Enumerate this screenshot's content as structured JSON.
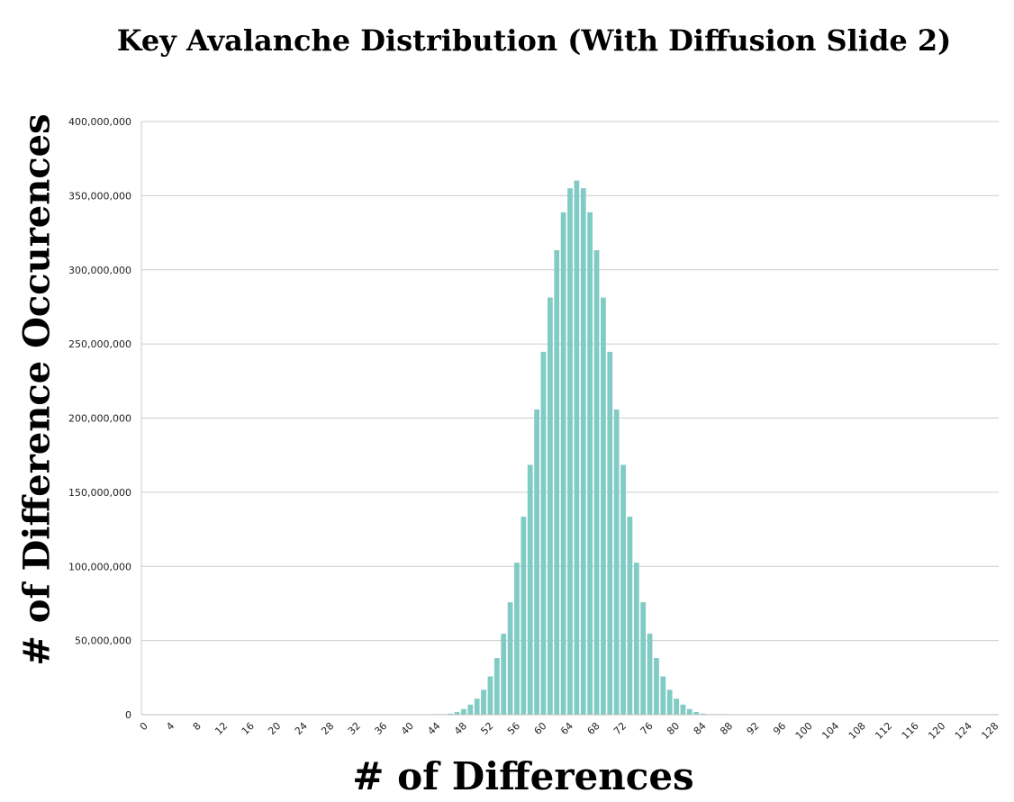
{
  "chart_data": {
    "type": "bar",
    "title": "Key Avalanche Distribution (With Diffusion Slide 2)",
    "xlabel": "# of Differences",
    "ylabel": "# of Difference Occurences",
    "x": [
      0,
      1,
      2,
      3,
      4,
      5,
      6,
      7,
      8,
      9,
      10,
      11,
      12,
      13,
      14,
      15,
      16,
      17,
      18,
      19,
      20,
      21,
      22,
      23,
      24,
      25,
      26,
      27,
      28,
      29,
      30,
      31,
      32,
      33,
      34,
      35,
      36,
      37,
      38,
      39,
      40,
      41,
      42,
      43,
      44,
      45,
      46,
      47,
      48,
      49,
      50,
      51,
      52,
      53,
      54,
      55,
      56,
      57,
      58,
      59,
      60,
      61,
      62,
      63,
      64,
      65,
      66,
      67,
      68,
      69,
      70,
      71,
      72,
      73,
      74,
      75,
      76,
      77,
      78,
      79,
      80,
      81,
      82,
      83,
      84,
      85,
      86,
      87,
      88,
      89,
      90,
      91,
      92,
      93,
      94,
      95,
      96,
      97,
      98,
      99,
      100,
      101,
      102,
      103,
      104,
      105,
      106,
      107,
      108,
      109,
      110,
      111,
      112,
      113,
      114,
      115,
      116,
      117,
      118,
      119,
      120,
      121,
      122,
      123,
      124,
      125,
      126,
      127,
      128
    ],
    "values": [
      0,
      0,
      0,
      0,
      0,
      0,
      0,
      0,
      0,
      0,
      0,
      0,
      0,
      0,
      0,
      0,
      0,
      0,
      0,
      0,
      0,
      0,
      0,
      0,
      0,
      0,
      0,
      0,
      0,
      0,
      0,
      0,
      0,
      0,
      0,
      0,
      0,
      0,
      0,
      0,
      0,
      0,
      0,
      0,
      80000,
      250000,
      700000,
      1800000,
      3800000,
      6800000,
      10800000,
      16800000,
      25800000,
      38200000,
      54600000,
      75800000,
      102500000,
      133500000,
      168500000,
      205800000,
      244700000,
      281300000,
      313200000,
      338800000,
      355000000,
      360200000,
      355000000,
      338800000,
      313200000,
      281300000,
      244700000,
      205800000,
      168500000,
      133500000,
      102500000,
      75800000,
      54600000,
      38200000,
      25800000,
      16800000,
      10800000,
      6800000,
      3800000,
      1800000,
      700000,
      250000,
      80000,
      20000,
      0,
      0,
      0,
      0,
      0,
      0,
      0,
      0,
      0,
      0,
      0,
      0,
      0,
      0,
      0,
      0,
      0,
      0,
      0,
      0,
      0,
      0,
      0,
      0,
      0,
      0,
      0,
      0,
      0,
      0,
      0,
      0,
      0,
      0,
      0,
      0,
      0,
      0,
      0,
      0,
      0
    ],
    "xticks": [
      "0",
      "4",
      "8",
      "12",
      "16",
      "20",
      "24",
      "28",
      "32",
      "36",
      "40",
      "44",
      "48",
      "52",
      "56",
      "60",
      "64",
      "68",
      "72",
      "76",
      "80",
      "84",
      "88",
      "92",
      "96",
      "100",
      "104",
      "108",
      "112",
      "116",
      "120",
      "124",
      "128"
    ],
    "yticks": [
      "0",
      "50,000,000",
      "100,000,000",
      "150,000,000",
      "200,000,000",
      "250,000,000",
      "300,000,000",
      "350,000,000",
      "400,000,000"
    ],
    "xlim": [
      0,
      128
    ],
    "ylim": [
      0,
      400000000
    ],
    "grid": true,
    "bar_color": "#80cbc4",
    "grid_color": "#cccccc"
  }
}
